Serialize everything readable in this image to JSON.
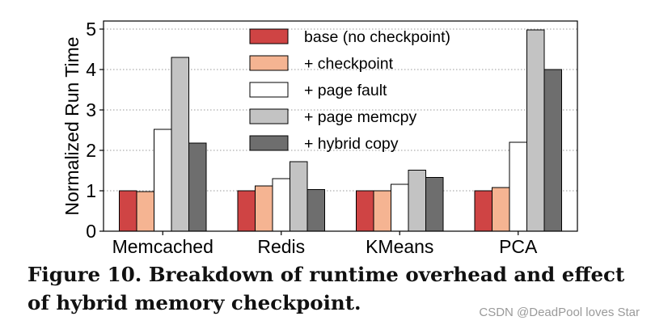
{
  "chart_data": {
    "type": "bar",
    "ylabel": "Normalized Run Time",
    "xlabel": "",
    "ylim": [
      0,
      5.2
    ],
    "yticks": [
      0,
      1,
      2,
      3,
      4,
      5
    ],
    "grid": "horizontal dotted",
    "legend_position": "top-center",
    "categories": [
      "Memcached",
      "Redis",
      "KMeans",
      "PCA"
    ],
    "series": [
      {
        "name": "base (no checkpoint)",
        "color": "#cf4444",
        "values": [
          1.0,
          1.0,
          1.0,
          1.0
        ]
      },
      {
        "name": "+ checkpoint",
        "color": "#f5b492",
        "values": [
          0.98,
          1.12,
          1.0,
          1.08
        ]
      },
      {
        "name": "+ page fault",
        "color": "#ffffff",
        "values": [
          2.52,
          1.3,
          1.16,
          2.2
        ]
      },
      {
        "name": "+ page memcpy",
        "color": "#c3c3c3",
        "values": [
          4.3,
          1.72,
          1.51,
          4.98
        ]
      },
      {
        "name": "+ hybrid copy",
        "color": "#6e6e6e",
        "values": [
          2.18,
          1.03,
          1.33,
          4.0
        ]
      }
    ]
  },
  "caption": "Figure 10. Breakdown of runtime overhead and effect of hybrid memory checkpoint.",
  "watermark": "CSDN @DeadPool loves Star"
}
